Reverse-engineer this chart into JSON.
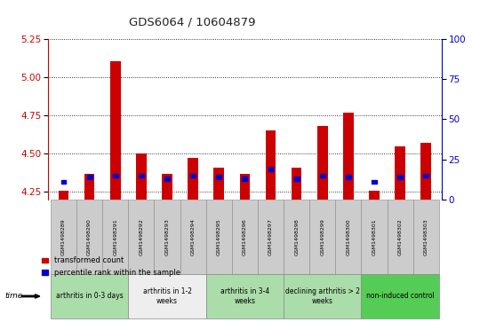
{
  "title": "GDS6064 / 10604879",
  "samples": [
    "GSM1498289",
    "GSM1498290",
    "GSM1498291",
    "GSM1498292",
    "GSM1498293",
    "GSM1498294",
    "GSM1498295",
    "GSM1498296",
    "GSM1498297",
    "GSM1498298",
    "GSM1498299",
    "GSM1498300",
    "GSM1498301",
    "GSM1498302",
    "GSM1498303"
  ],
  "red_values": [
    4.26,
    4.37,
    5.1,
    4.5,
    4.37,
    4.47,
    4.41,
    4.37,
    4.65,
    4.41,
    4.68,
    4.77,
    4.26,
    4.55,
    4.57
  ],
  "blue_pct": [
    11,
    14,
    15,
    15,
    13,
    15,
    14,
    13,
    19,
    13,
    15,
    14,
    11,
    14,
    15
  ],
  "ymin": 4.2,
  "ymax": 5.25,
  "yticks": [
    4.25,
    4.5,
    4.75,
    5.0,
    5.25
  ],
  "y2min": 0,
  "y2max": 100,
  "y2ticks": [
    0,
    25,
    50,
    75,
    100
  ],
  "groups": [
    {
      "label": "arthritis in 0-3 days",
      "start": 0,
      "end": 3,
      "color": "#aaddaa"
    },
    {
      "label": "arthritis in 1-2\nweeks",
      "start": 3,
      "end": 6,
      "color": "#eeeeee"
    },
    {
      "label": "arthritis in 3-4\nweeks",
      "start": 6,
      "end": 9,
      "color": "#aaddaa"
    },
    {
      "label": "declining arthritis > 2\nweeks",
      "start": 9,
      "end": 12,
      "color": "#aaddaa"
    },
    {
      "label": "non-induced control",
      "start": 12,
      "end": 15,
      "color": "#55cc55"
    }
  ],
  "red_color": "#cc0000",
  "blue_color": "#0000cc",
  "left_axis_color": "#cc0000",
  "right_axis_color": "#0000cc",
  "gray_box_color": "#cccccc",
  "bar_width": 0.4
}
